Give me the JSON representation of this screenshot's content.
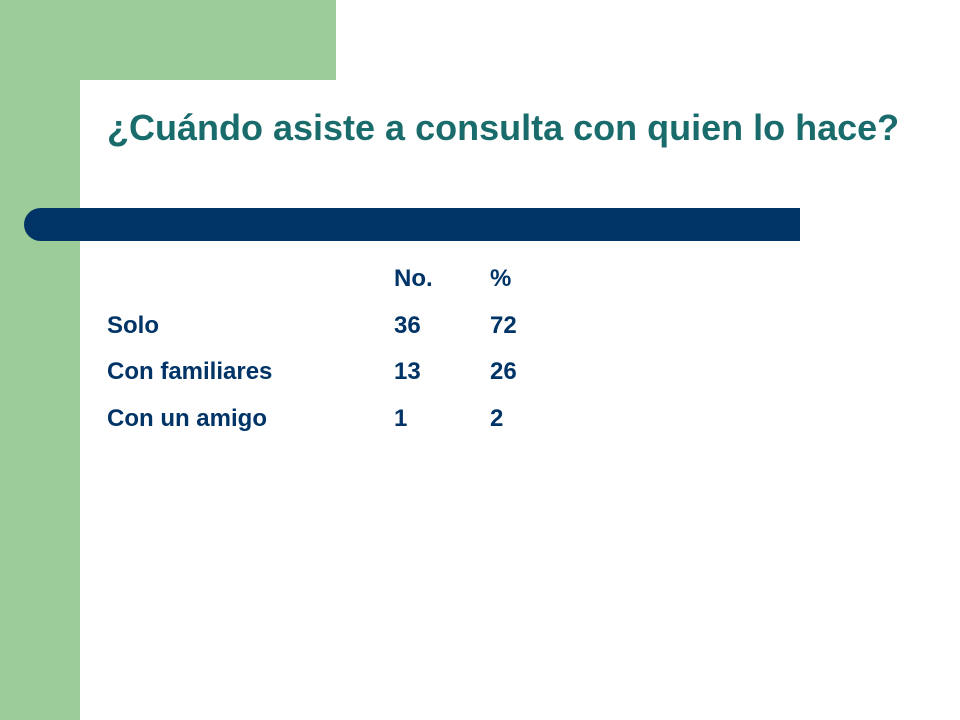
{
  "slide": {
    "title": "¿Cuándo asiste a consulta con quien lo hace?"
  },
  "table": {
    "headers": [
      "",
      "No.",
      "%"
    ],
    "rows": [
      {
        "label": "Solo",
        "no": "36",
        "pct": "72"
      },
      {
        "label": "Con familiares",
        "no": "13",
        "pct": "26"
      },
      {
        "label": "Con un amigo",
        "no": "1",
        "pct": "2"
      }
    ]
  },
  "colors": {
    "accent_green": "#9ccc98",
    "title_teal": "#1a6b6b",
    "navy": "#003366"
  }
}
